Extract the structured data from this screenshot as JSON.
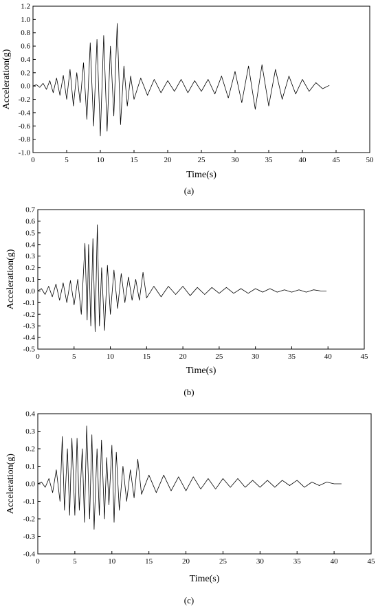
{
  "chart_data": [
    {
      "type": "line",
      "panel_label": "(a)",
      "xlabel": "Time(s)",
      "ylabel": "Acceleration(g)",
      "xlim": [
        0,
        50
      ],
      "ylim": [
        -1.0,
        1.2
      ],
      "xticks": [
        0,
        5,
        10,
        15,
        20,
        25,
        30,
        35,
        40,
        45,
        50
      ],
      "yticks": [
        -1.0,
        -0.8,
        -0.6,
        -0.4,
        -0.2,
        0.0,
        0.2,
        0.4,
        0.6,
        0.8,
        1.0,
        1.2
      ],
      "ytick_decimals": 1,
      "grid": false,
      "series": [
        {
          "color": "#000000",
          "x": [
            0.0,
            0.5,
            1.0,
            1.5,
            2.0,
            2.5,
            3.0,
            3.5,
            4.0,
            4.5,
            5.0,
            5.5,
            6.0,
            6.5,
            7.0,
            7.5,
            8.0,
            8.5,
            9.0,
            9.5,
            10.0,
            10.5,
            11.0,
            11.5,
            12.0,
            12.5,
            13.0,
            13.5,
            14.0,
            14.5,
            15.0,
            16.0,
            17.0,
            18.0,
            19.0,
            20.0,
            21.0,
            22.0,
            23.0,
            24.0,
            25.0,
            26.0,
            27.0,
            28.0,
            29.0,
            30.0,
            31.0,
            32.0,
            33.0,
            34.0,
            35.0,
            36.0,
            37.0,
            38.0,
            39.0,
            40.0,
            41.0,
            42.0,
            43.0,
            44.0
          ],
          "y": [
            0.0,
            0.02,
            -0.02,
            0.04,
            -0.05,
            0.08,
            -0.1,
            0.12,
            -0.14,
            0.16,
            -0.2,
            0.25,
            -0.3,
            0.2,
            -0.25,
            0.35,
            -0.5,
            0.65,
            -0.6,
            0.7,
            -0.75,
            0.76,
            -0.68,
            0.6,
            -0.45,
            0.94,
            -0.58,
            0.3,
            -0.3,
            0.15,
            -0.2,
            0.12,
            -0.14,
            0.1,
            -0.1,
            0.08,
            -0.08,
            0.1,
            -0.1,
            0.08,
            -0.08,
            0.1,
            -0.12,
            0.15,
            -0.18,
            0.22,
            -0.25,
            0.3,
            -0.35,
            0.32,
            -0.3,
            0.25,
            -0.2,
            0.15,
            -0.12,
            0.1,
            -0.08,
            0.05,
            -0.04,
            0.01
          ]
        }
      ]
    },
    {
      "type": "line",
      "panel_label": "(b)",
      "xlabel": "Time(s)",
      "ylabel": "Acceleration(g)",
      "xlim": [
        0,
        45
      ],
      "ylim": [
        -0.5,
        0.7
      ],
      "xticks": [
        0,
        5,
        10,
        15,
        20,
        25,
        30,
        35,
        40,
        45
      ],
      "yticks": [
        -0.5,
        -0.4,
        -0.3,
        -0.2,
        -0.1,
        0.0,
        0.1,
        0.2,
        0.3,
        0.4,
        0.5,
        0.6,
        0.7
      ],
      "ytick_decimals": 1,
      "grid": false,
      "series": [
        {
          "color": "#000000",
          "x": [
            0.0,
            0.5,
            1.0,
            1.5,
            2.0,
            2.5,
            3.0,
            3.5,
            4.0,
            4.5,
            5.0,
            5.5,
            6.0,
            6.5,
            6.8,
            7.0,
            7.3,
            7.6,
            7.9,
            8.2,
            8.5,
            8.8,
            9.2,
            9.6,
            10.0,
            10.5,
            11.0,
            11.5,
            12.0,
            12.5,
            13.0,
            13.5,
            14.0,
            14.5,
            15.0,
            16.0,
            17.0,
            18.0,
            19.0,
            20.0,
            21.0,
            22.0,
            23.0,
            24.0,
            25.0,
            26.0,
            27.0,
            28.0,
            29.0,
            30.0,
            31.0,
            32.0,
            33.0,
            34.0,
            35.0,
            36.0,
            37.0,
            38.0,
            39.0,
            39.8
          ],
          "y": [
            0.0,
            0.02,
            -0.03,
            0.04,
            -0.05,
            0.06,
            -0.08,
            0.07,
            -0.1,
            0.09,
            -0.12,
            0.1,
            -0.2,
            0.41,
            -0.25,
            0.4,
            -0.3,
            0.45,
            -0.35,
            0.57,
            -0.3,
            0.2,
            -0.34,
            0.22,
            -0.2,
            0.18,
            -0.15,
            0.15,
            -0.1,
            0.12,
            -0.08,
            0.1,
            -0.08,
            0.16,
            -0.06,
            0.04,
            -0.05,
            0.04,
            -0.03,
            0.04,
            -0.04,
            0.03,
            -0.03,
            0.03,
            -0.02,
            0.03,
            -0.02,
            0.02,
            -0.02,
            0.02,
            -0.01,
            0.02,
            -0.01,
            0.01,
            -0.01,
            0.01,
            -0.01,
            0.01,
            0.0,
            0.0
          ]
        }
      ]
    },
    {
      "type": "line",
      "panel_label": "(c)",
      "xlabel": "Time(s)",
      "ylabel": "Acceleration(g)",
      "xlim": [
        0,
        45
      ],
      "ylim": [
        -0.4,
        0.4
      ],
      "xticks": [
        0,
        5,
        10,
        15,
        20,
        25,
        30,
        35,
        40,
        45
      ],
      "yticks": [
        -0.4,
        -0.3,
        -0.2,
        -0.1,
        0.0,
        0.1,
        0.2,
        0.3,
        0.4
      ],
      "ytick_decimals": 1,
      "grid": false,
      "series": [
        {
          "color": "#000000",
          "x": [
            0.0,
            0.5,
            1.0,
            1.5,
            2.0,
            2.5,
            3.0,
            3.3,
            3.6,
            4.0,
            4.3,
            4.6,
            5.0,
            5.3,
            5.6,
            6.0,
            6.3,
            6.6,
            7.0,
            7.3,
            7.6,
            8.0,
            8.3,
            8.6,
            9.0,
            9.3,
            9.6,
            10.0,
            10.3,
            10.6,
            11.0,
            11.5,
            12.0,
            12.5,
            13.0,
            13.5,
            14.0,
            15.0,
            16.0,
            17.0,
            18.0,
            19.0,
            20.0,
            21.0,
            22.0,
            23.0,
            24.0,
            25.0,
            26.0,
            27.0,
            28.0,
            29.0,
            30.0,
            31.0,
            32.0,
            33.0,
            34.0,
            35.0,
            36.0,
            37.0,
            38.0,
            39.0,
            40.0,
            41.0
          ],
          "y": [
            0.0,
            0.01,
            -0.02,
            0.03,
            -0.05,
            0.08,
            -0.1,
            0.27,
            -0.15,
            0.2,
            -0.18,
            0.26,
            -0.18,
            0.26,
            -0.15,
            0.2,
            -0.22,
            0.33,
            -0.2,
            0.28,
            -0.26,
            0.2,
            -0.18,
            0.25,
            -0.2,
            0.15,
            -0.12,
            0.22,
            -0.22,
            0.18,
            -0.15,
            0.1,
            -0.1,
            0.08,
            -0.08,
            0.14,
            -0.06,
            0.05,
            -0.05,
            0.05,
            -0.04,
            0.04,
            -0.04,
            0.04,
            -0.03,
            0.03,
            -0.03,
            0.03,
            -0.02,
            0.03,
            -0.02,
            0.02,
            -0.02,
            0.02,
            -0.02,
            0.02,
            -0.01,
            0.02,
            -0.02,
            0.01,
            -0.01,
            0.01,
            0.0,
            0.0
          ]
        }
      ]
    }
  ]
}
